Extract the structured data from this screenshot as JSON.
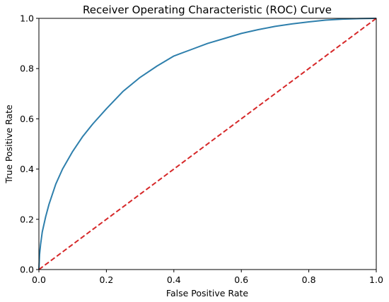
{
  "chart_data": {
    "type": "line",
    "title": "Receiver Operating Characteristic (ROC) Curve",
    "xlabel": "False Positive Rate",
    "ylabel": "True Positive Rate",
    "xlim": [
      0.0,
      1.0
    ],
    "ylim": [
      0.0,
      1.0
    ],
    "x_ticks": [
      "0.0",
      "0.2",
      "0.4",
      "0.6",
      "0.8",
      "1.0"
    ],
    "y_ticks": [
      "0.0",
      "0.2",
      "0.4",
      "0.6",
      "0.8",
      "1.0"
    ],
    "grid": false,
    "series": [
      {
        "color": "#2e7fac",
        "style": "solid",
        "x": [
          0.0,
          0.002,
          0.005,
          0.01,
          0.02,
          0.03,
          0.05,
          0.07,
          0.1,
          0.13,
          0.16,
          0.2,
          0.25,
          0.3,
          0.35,
          0.4,
          0.45,
          0.5,
          0.55,
          0.6,
          0.65,
          0.7,
          0.75,
          0.8,
          0.85,
          0.9,
          0.95,
          1.0
        ],
        "y": [
          0.0,
          0.06,
          0.1,
          0.15,
          0.21,
          0.26,
          0.34,
          0.4,
          0.47,
          0.53,
          0.58,
          0.64,
          0.71,
          0.765,
          0.81,
          0.85,
          0.875,
          0.9,
          0.92,
          0.94,
          0.955,
          0.968,
          0.978,
          0.986,
          0.993,
          0.997,
          0.999,
          1.0
        ]
      },
      {
        "color": "#d62728",
        "style": "dashed",
        "x": [
          0.0,
          1.0
        ],
        "y": [
          0.0,
          1.0
        ]
      }
    ]
  }
}
